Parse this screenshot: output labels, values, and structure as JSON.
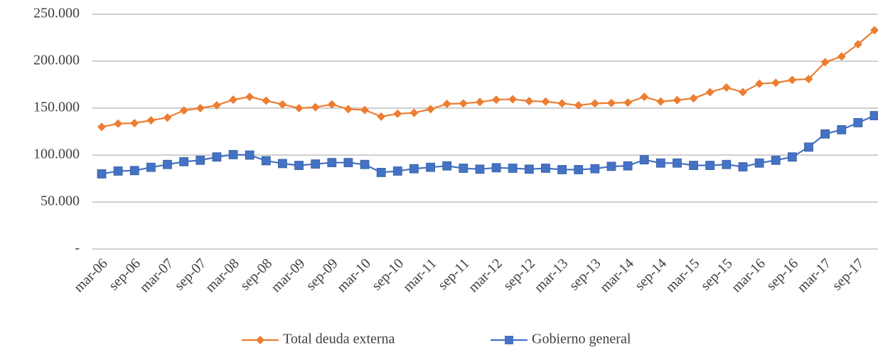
{
  "chart_data": {
    "type": "line",
    "categories": [
      "mar-06",
      null,
      "sep-06",
      null,
      "mar-07",
      null,
      "sep-07",
      null,
      "mar-08",
      null,
      "sep-08",
      null,
      "mar-09",
      null,
      "sep-09",
      null,
      "mar-10",
      null,
      "sep-10",
      null,
      "mar-11",
      null,
      "sep-11",
      null,
      "mar-12",
      null,
      "sep-12",
      null,
      "mar-13",
      null,
      "sep-13",
      null,
      "mar-14",
      null,
      "sep-14",
      null,
      "mar-15",
      null,
      "sep-15",
      null,
      "mar-16",
      null,
      "sep-16",
      null,
      "mar-17",
      null,
      "sep-17",
      null
    ],
    "series": [
      {
        "name": "Total deuda externa",
        "color": "#ED7D31",
        "marker": "diamond",
        "values": [
          130000,
          133500,
          134000,
          137000,
          140000,
          147500,
          150000,
          153000,
          159000,
          162000,
          158000,
          154000,
          150000,
          151000,
          154000,
          149000,
          148000,
          141000,
          144000,
          145000,
          149000,
          154500,
          155000,
          156500,
          159000,
          159500,
          157500,
          157000,
          155000,
          153000,
          155000,
          155500,
          156000,
          162000,
          157000,
          158500,
          160500,
          167000,
          172000,
          167000,
          176000,
          177000,
          180000,
          181000,
          199000,
          205000,
          218000,
          233000
        ]
      },
      {
        "name": "Gobierno general",
        "color": "#4472C4",
        "marker": "square",
        "values": [
          80000,
          83000,
          83500,
          87000,
          90000,
          93000,
          94500,
          98000,
          100500,
          100000,
          94000,
          91000,
          89000,
          90500,
          92000,
          92000,
          90000,
          81500,
          83000,
          85500,
          87000,
          88500,
          86000,
          85000,
          86500,
          86000,
          85000,
          86000,
          84500,
          84500,
          85500,
          88000,
          88500,
          95000,
          91500,
          91500,
          89000,
          89000,
          90000,
          87500,
          91500,
          94500,
          98000,
          108500,
          122500,
          127000,
          134500,
          142000
        ]
      }
    ],
    "ylim": [
      0,
      250000
    ],
    "yticks": [
      {
        "value": 0,
        "label": "-"
      },
      {
        "value": 50000,
        "label": "50.000"
      },
      {
        "value": 100000,
        "label": "100.000"
      },
      {
        "value": 150000,
        "label": "150.000"
      },
      {
        "value": 200000,
        "label": "200.000"
      },
      {
        "value": 250000,
        "label": "250.000"
      }
    ],
    "grid": true
  }
}
